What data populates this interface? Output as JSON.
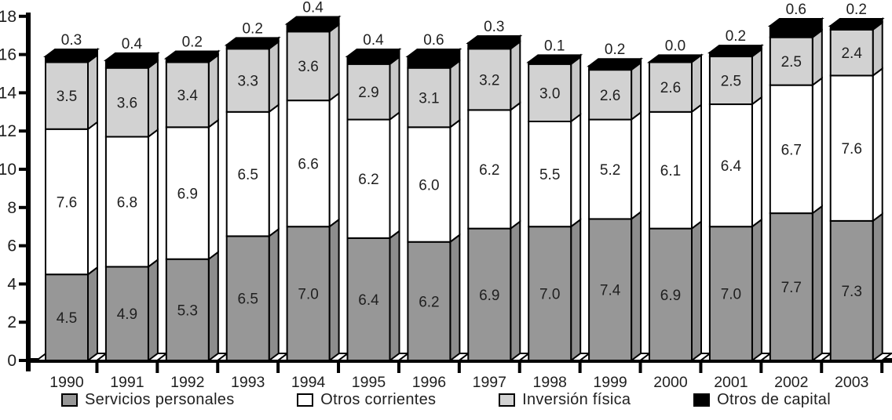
{
  "chart_data": {
    "type": "bar",
    "variant": "stacked-3d-columns",
    "title": "",
    "xlabel": "",
    "ylabel": "",
    "grid": false,
    "legend_position": "bottom",
    "background": "#ffffff",
    "outline_color": "#000000",
    "label_color": "#262626",
    "axis_color": "#000000",
    "categories": [
      "1990",
      "1991",
      "1992",
      "1993",
      "1994",
      "1995",
      "1996",
      "1997",
      "1998",
      "1999",
      "2000",
      "2001",
      "2002",
      "2003"
    ],
    "series": [
      {
        "name": "Servicios personales",
        "color": "#979797",
        "side_color": "#8d8d8d",
        "values": [
          4.5,
          4.9,
          5.3,
          6.5,
          7.0,
          6.4,
          6.2,
          6.9,
          7.0,
          7.4,
          6.9,
          7.0,
          7.7,
          7.3
        ]
      },
      {
        "name": "Otros corrientes",
        "color": "#ffffff",
        "side_color": "#ffffff",
        "values": [
          7.6,
          6.8,
          6.9,
          6.5,
          6.6,
          6.2,
          6.0,
          6.2,
          5.5,
          5.2,
          6.1,
          6.4,
          6.7,
          7.6
        ]
      },
      {
        "name": "Inversión física",
        "color": "#d2d2d2",
        "side_color": "#c8c8c8",
        "values": [
          3.5,
          3.6,
          3.4,
          3.3,
          3.6,
          2.9,
          3.1,
          3.2,
          3.0,
          2.6,
          2.6,
          2.5,
          2.5,
          2.4
        ]
      },
      {
        "name": "Otros de capital",
        "color": "#000000",
        "side_color": "#000000",
        "values": [
          0.3,
          0.4,
          0.2,
          0.2,
          0.4,
          0.4,
          0.6,
          0.3,
          0.1,
          0.2,
          0.0,
          0.2,
          0.6,
          0.2
        ]
      }
    ],
    "yaxis": {
      "min": 0,
      "max": 18,
      "step": 2,
      "ticks": [
        "0",
        "2",
        "4",
        "6",
        "8",
        "10",
        "12",
        "14",
        "16",
        "18"
      ]
    },
    "value_labels": "one-decimal shown on every segment; top segment value shown above bar"
  }
}
